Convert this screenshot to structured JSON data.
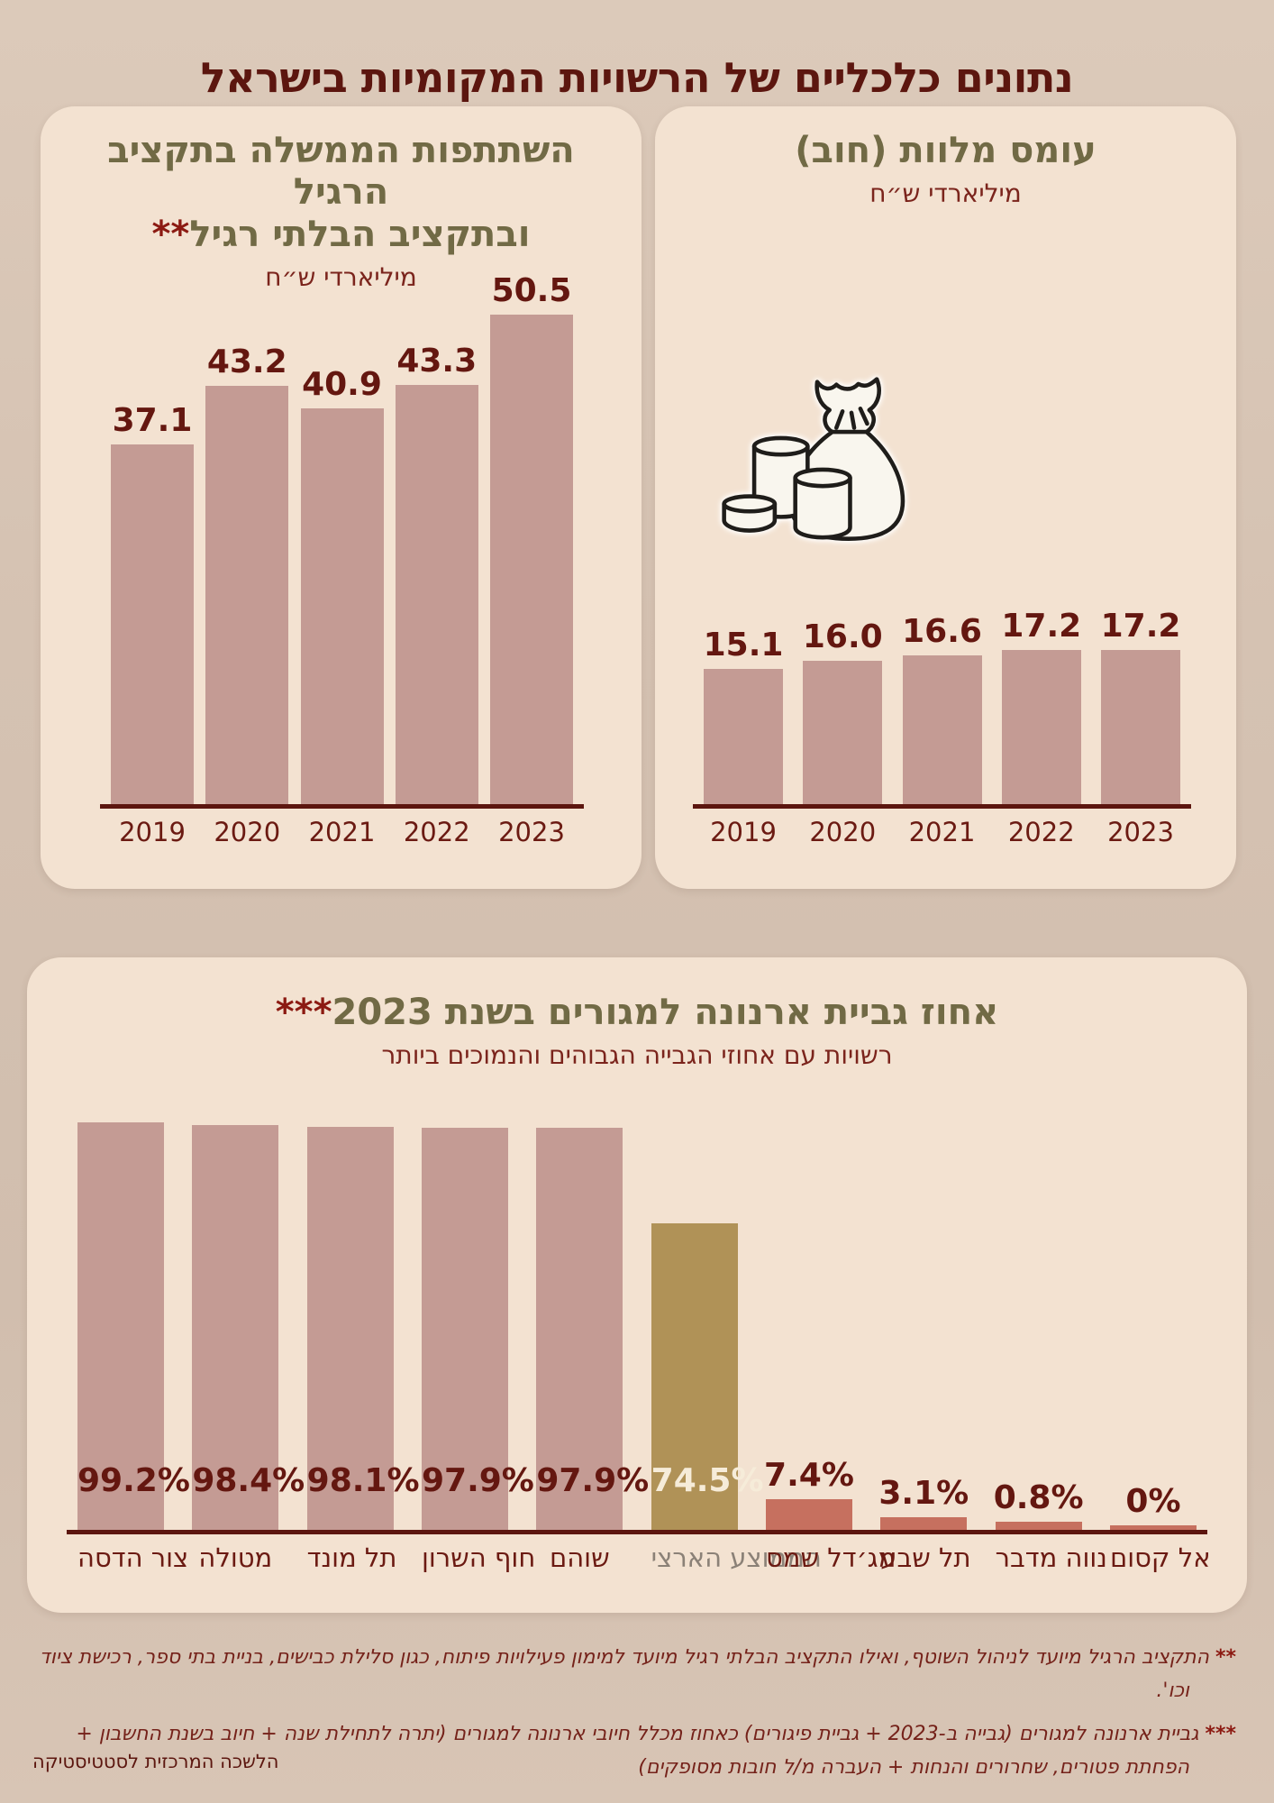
{
  "page_title": "נתונים כלכליים של הרשויות המקומיות בישראל",
  "source_credit": "הלשכה המרכזית לסטטיסטיקה",
  "footnotes": {
    "budget": {
      "marker": "**",
      "text": "התקציב הרגיל מיועד לניהול השוטף, ואילו התקציב הבלתי רגיל מיועד למימון פעילויות פיתוח, כגון סלילת כבישים, בניית בתי ספר, רכישת ציוד וכו'."
    },
    "arnona": {
      "marker": "***",
      "text": "גביית ארנונה למגורים (גבייה ב-2023 + גביית פיגורים) כאחוז מכלל חיובי ארנונה למגורים (יתרה לתחילת שנה + חיוב בשנת החשבון + הפחתת פטורים, שחרורים והנחות + העברה מ/ל חובות מסופקים)"
    }
  },
  "colors": {
    "title_maroon": "#5c160f",
    "heading_olive": "#716a45",
    "subtitle_red": "#7b241c",
    "bar_mauve": "#c49b94",
    "bar_gold": "#b09257",
    "bar_salmon": "#c6705f",
    "axis_maroon": "#5c160f",
    "panel_bg": "#f3e2d1",
    "page_bg": "#d5c2b2",
    "average_label_gray": "#8b8177",
    "inside_label_cream": "#f6ecd9"
  },
  "chart_data": [
    {
      "id": "loan-burden",
      "type": "bar",
      "title": "עומס מלוות (חוב)",
      "subtitle": "מיליארדי ש״ח",
      "categories": [
        "2019",
        "2020",
        "2021",
        "2022",
        "2023"
      ],
      "values": [
        15.1,
        16.0,
        16.6,
        17.2,
        17.2
      ],
      "value_labels": [
        "15.1",
        "16.0",
        "16.6",
        "17.2",
        "17.2"
      ],
      "ylim": [
        0,
        18
      ],
      "grid": false,
      "legend": "none",
      "icon": "money-bag-coins-icon"
    },
    {
      "id": "government-participation",
      "type": "bar",
      "title": "השתתפות הממשלה בתקציב הרגיל ובתקציב הבלתי רגיל**",
      "title_lines": [
        "השתתפות הממשלה בתקציב הרגיל",
        "ובתקציב הבלתי רגיל"
      ],
      "footnote_marker": "**",
      "subtitle": "מיליארדי ש״ח",
      "categories": [
        "2019",
        "2020",
        "2021",
        "2022",
        "2023"
      ],
      "values": [
        37.1,
        43.2,
        40.9,
        43.3,
        50.5
      ],
      "value_labels": [
        "37.1",
        "43.2",
        "40.9",
        "43.3",
        "50.5"
      ],
      "ylim": [
        0,
        55
      ],
      "grid": false,
      "legend": "none"
    },
    {
      "id": "arnona-collection-2023",
      "type": "bar",
      "title": "אחוז גביית ארנונה למגורים בשנת 2023",
      "footnote_marker": "***",
      "subtitle": "רשויות עם אחוזי הגבייה הגבוהים והנמוכים ביותר",
      "categories": [
        "צור הדסה",
        "מטולה",
        "תל מונד",
        "חוף השרון",
        "שוהם",
        "הממוצע הארצי",
        "מג׳דל שמס",
        "תל שבע",
        "נווה מדבר",
        "אל קסום"
      ],
      "values": [
        99.2,
        98.4,
        98.1,
        97.9,
        97.9,
        74.5,
        7.4,
        3.1,
        0.8,
        0
      ],
      "value_labels": [
        "99.2%",
        "98.4%",
        "98.1%",
        "97.9%",
        "97.9%",
        "74.5%",
        "7.4%",
        "3.1%",
        "0.8%",
        "0%"
      ],
      "bar_kinds": [
        "high",
        "high",
        "high",
        "high",
        "high",
        "average",
        "low",
        "low",
        "low",
        "low"
      ],
      "highlight": {
        "index": 5,
        "meaning": "national average",
        "color": "#b09257"
      },
      "ylim": [
        0,
        100
      ],
      "grid": false,
      "legend": "none"
    }
  ]
}
